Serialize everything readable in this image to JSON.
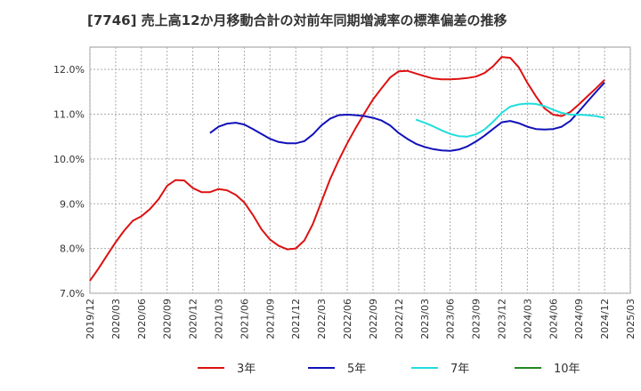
{
  "chart_data": {
    "type": "line",
    "title": "[7746]  売上高12か月移動合計の対前年同期増減率の標準偏差の推移",
    "xlabel": "",
    "ylabel": "",
    "ylim": [
      7.0,
      12.5
    ],
    "y_ticks": [
      7.0,
      8.0,
      9.0,
      10.0,
      11.0,
      12.0
    ],
    "y_tick_labels": [
      "7.0%",
      "8.0%",
      "9.0%",
      "10.0%",
      "11.0%",
      "12.0%"
    ],
    "x_start": "2019/12",
    "x_end": "2025/03",
    "x_tick_labels": [
      "2019/12",
      "2020/03",
      "2020/06",
      "2020/09",
      "2020/12",
      "2021/03",
      "2021/06",
      "2021/09",
      "2021/12",
      "2022/03",
      "2022/06",
      "2022/09",
      "2022/12",
      "2023/03",
      "2023/06",
      "2023/09",
      "2023/12",
      "2024/03",
      "2024/06",
      "2024/09",
      "2024/12",
      "2025/03"
    ],
    "grid": true,
    "legend_position": "bottom",
    "series": [
      {
        "name": "3年",
        "color": "#dd1111",
        "points": [
          [
            "2019/12",
            7.28
          ],
          [
            "2020/01",
            7.55
          ],
          [
            "2020/02",
            7.85
          ],
          [
            "2020/03",
            8.14
          ],
          [
            "2020/04",
            8.4
          ],
          [
            "2020/05",
            8.62
          ],
          [
            "2020/06",
            8.72
          ],
          [
            "2020/07",
            8.88
          ],
          [
            "2020/08",
            9.1
          ],
          [
            "2020/09",
            9.4
          ],
          [
            "2020/10",
            9.53
          ],
          [
            "2020/11",
            9.52
          ],
          [
            "2020/12",
            9.35
          ],
          [
            "2021/01",
            9.26
          ],
          [
            "2021/02",
            9.26
          ],
          [
            "2021/03",
            9.33
          ],
          [
            "2021/04",
            9.3
          ],
          [
            "2021/05",
            9.2
          ],
          [
            "2021/06",
            9.03
          ],
          [
            "2021/07",
            8.75
          ],
          [
            "2021/08",
            8.43
          ],
          [
            "2021/09",
            8.2
          ],
          [
            "2021/10",
            8.06
          ],
          [
            "2021/11",
            7.98
          ],
          [
            "2021/12",
            8.0
          ],
          [
            "2021/12b",
            8.0
          ],
          [
            "2022/01",
            8.18
          ],
          [
            "2022/02",
            8.55
          ],
          [
            "2022/03",
            9.05
          ],
          [
            "2022/04",
            9.55
          ],
          [
            "2022/05",
            9.97
          ],
          [
            "2022/06",
            10.35
          ],
          [
            "2022/07",
            10.7
          ],
          [
            "2022/08",
            11.02
          ],
          [
            "2022/09",
            11.33
          ],
          [
            "2022/10",
            11.58
          ],
          [
            "2022/11",
            11.82
          ],
          [
            "2022/12",
            11.96
          ],
          [
            "2023/01",
            11.97
          ],
          [
            "2023/02",
            11.91
          ],
          [
            "2023/03",
            11.85
          ],
          [
            "2023/04",
            11.8
          ],
          [
            "2023/05",
            11.78
          ],
          [
            "2023/06",
            11.78
          ],
          [
            "2023/07",
            11.79
          ],
          [
            "2023/08",
            11.81
          ],
          [
            "2023/09",
            11.84
          ],
          [
            "2023/10",
            11.92
          ],
          [
            "2023/11",
            12.07
          ],
          [
            "2023/12",
            12.28
          ],
          [
            "2024/01",
            12.26
          ],
          [
            "2024/02",
            12.05
          ],
          [
            "2024/03",
            11.7
          ],
          [
            "2024/04",
            11.4
          ],
          [
            "2024/05",
            11.13
          ],
          [
            "2024/06",
            10.99
          ],
          [
            "2024/07",
            10.96
          ],
          [
            "2024/08",
            11.05
          ],
          [
            "2024/09",
            11.22
          ],
          [
            "2024/10",
            11.4
          ],
          [
            "2024/11",
            11.58
          ],
          [
            "2024/12",
            11.77
          ]
        ]
      },
      {
        "name": "5年",
        "color": "#1111bb",
        "points": [
          [
            "2021/02",
            10.58
          ],
          [
            "2021/03",
            10.72
          ],
          [
            "2021/04",
            10.79
          ],
          [
            "2021/05",
            10.81
          ],
          [
            "2021/06",
            10.77
          ],
          [
            "2021/07",
            10.67
          ],
          [
            "2021/08",
            10.56
          ],
          [
            "2021/09",
            10.45
          ],
          [
            "2021/10",
            10.38
          ],
          [
            "2021/11",
            10.35
          ],
          [
            "2021/12",
            10.35
          ],
          [
            "2022/01",
            10.4
          ],
          [
            "2022/02",
            10.55
          ],
          [
            "2022/03",
            10.75
          ],
          [
            "2022/04",
            10.9
          ],
          [
            "2022/05",
            10.98
          ],
          [
            "2022/06",
            10.99
          ],
          [
            "2022/07",
            10.98
          ],
          [
            "2022/08",
            10.96
          ],
          [
            "2022/09",
            10.92
          ],
          [
            "2022/10",
            10.86
          ],
          [
            "2022/11",
            10.75
          ],
          [
            "2022/12",
            10.58
          ],
          [
            "2023/01",
            10.45
          ],
          [
            "2023/02",
            10.34
          ],
          [
            "2023/03",
            10.27
          ],
          [
            "2023/04",
            10.22
          ],
          [
            "2023/05",
            10.19
          ],
          [
            "2023/06",
            10.18
          ],
          [
            "2023/07",
            10.21
          ],
          [
            "2023/08",
            10.28
          ],
          [
            "2023/09",
            10.39
          ],
          [
            "2023/10",
            10.52
          ],
          [
            "2023/11",
            10.67
          ],
          [
            "2023/12",
            10.82
          ],
          [
            "2024/01",
            10.85
          ],
          [
            "2024/02",
            10.8
          ],
          [
            "2024/03",
            10.72
          ],
          [
            "2024/04",
            10.67
          ],
          [
            "2024/05",
            10.66
          ],
          [
            "2024/06",
            10.67
          ],
          [
            "2024/07",
            10.72
          ],
          [
            "2024/08",
            10.85
          ],
          [
            "2024/09",
            11.06
          ],
          [
            "2024/10",
            11.28
          ],
          [
            "2024/11",
            11.5
          ],
          [
            "2024/12",
            11.71
          ]
        ]
      },
      {
        "name": "7年",
        "color": "#22dddd",
        "points": [
          [
            "2023/02",
            10.88
          ],
          [
            "2023/03",
            10.81
          ],
          [
            "2023/04",
            10.73
          ],
          [
            "2023/05",
            10.64
          ],
          [
            "2023/06",
            10.56
          ],
          [
            "2023/07",
            10.51
          ],
          [
            "2023/08",
            10.5
          ],
          [
            "2023/09",
            10.55
          ],
          [
            "2023/10",
            10.66
          ],
          [
            "2023/11",
            10.83
          ],
          [
            "2023/12",
            11.03
          ],
          [
            "2024/01",
            11.17
          ],
          [
            "2024/02",
            11.22
          ],
          [
            "2024/03",
            11.24
          ],
          [
            "2024/04",
            11.23
          ],
          [
            "2024/05",
            11.18
          ],
          [
            "2024/06",
            11.1
          ],
          [
            "2024/07",
            11.03
          ],
          [
            "2024/08",
            10.99
          ],
          [
            "2024/09",
            10.99
          ],
          [
            "2024/10",
            10.98
          ],
          [
            "2024/11",
            10.96
          ],
          [
            "2024/12",
            10.92
          ]
        ]
      },
      {
        "name": "10年",
        "color": "#228822",
        "points": []
      }
    ]
  }
}
